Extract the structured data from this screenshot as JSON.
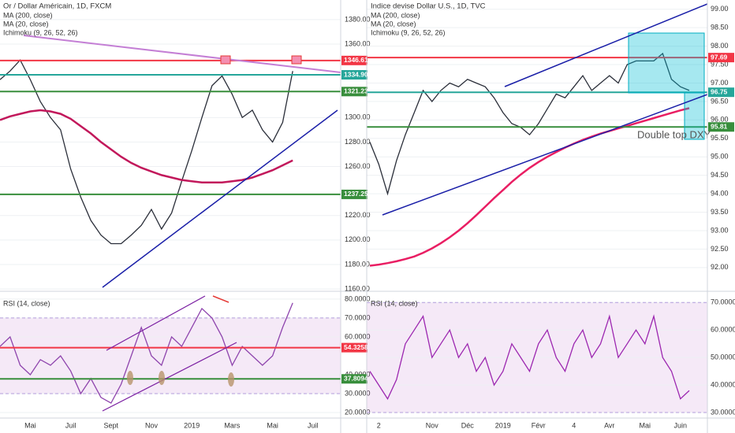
{
  "chart_data": [
    {
      "type": "line",
      "title": "Or / Dollar Américain, 1D, FXCM",
      "legend": [
        "MA (200, close)",
        "MA (20, close)",
        "Ichimoku (9, 26, 52, 26)"
      ],
      "categories": [
        null,
        null,
        null,
        "Mai",
        null,
        null,
        null,
        "Juil",
        null,
        null,
        null,
        "Sept",
        null,
        null,
        null,
        "Nov",
        null,
        null,
        null,
        "2019",
        null,
        null,
        null,
        "Mars",
        null,
        null,
        null,
        "Mai",
        null,
        null,
        null,
        "Juil"
      ],
      "series": [
        {
          "color": "#2a2e39",
          "values": [
            1331,
            1338,
            1347,
            1331,
            1313,
            1300,
            1290,
            1258,
            1235,
            1216,
            1204,
            1197,
            1197,
            1204,
            1212,
            1225,
            1209,
            1222,
            1248,
            1273,
            1300,
            1326,
            1334,
            1319,
            1300,
            1306,
            1290,
            1280,
            1296,
            1338,
            null,
            null
          ]
        },
        {
          "color": "#c2185b",
          "values": [
            1298,
            1301,
            1303,
            1305,
            1306,
            1305,
            1303,
            1299,
            1293,
            1287,
            1280,
            1274,
            1268,
            1263,
            1259,
            1256,
            1253,
            1251,
            1249,
            1248,
            1247,
            1247,
            1247,
            1248,
            1249,
            1251,
            1254,
            1257,
            1261,
            1265,
            null,
            null
          ]
        }
      ],
      "ylim": [
        1159.4,
        1396
      ],
      "yticks": [
        {
          "value": 1160,
          "label": "1160.00"
        },
        {
          "value": 1180,
          "label": "1180.00"
        },
        {
          "value": 1200,
          "label": "1200.00"
        },
        {
          "value": 1220,
          "label": "1220.00"
        },
        {
          "value": 1260,
          "label": "1260.00"
        },
        {
          "value": 1280,
          "label": "1280.00"
        },
        {
          "value": 1300,
          "label": "1300.00"
        },
        {
          "value": 1360,
          "label": "1360.00"
        },
        {
          "value": 1380,
          "label": "1380.00"
        }
      ],
      "levels": [
        {
          "value": 1346.61,
          "color": "#f23645"
        },
        {
          "value": 1334.9,
          "label": "1334.90",
          "color": "#26a69a"
        },
        {
          "value": 1321.23,
          "color": "#388e3c"
        },
        {
          "value": 1237.25,
          "color": "#388e3c"
        }
      ]
    },
    {
      "type": "line",
      "title": "RSI (14, close)",
      "series": [
        {
          "color": "#8e44ad",
          "values": [
            55,
            60,
            45,
            40,
            48,
            45,
            50,
            42,
            30,
            38,
            28,
            25,
            35,
            50,
            65,
            50,
            45,
            60,
            55,
            65,
            75,
            70,
            60,
            45,
            55,
            50,
            45,
            50,
            65,
            78,
            null,
            null
          ]
        }
      ],
      "band": [
        30,
        70
      ],
      "ylim": [
        17.5,
        83.3
      ],
      "yticks": [
        {
          "value": 20,
          "label": "20.0000"
        },
        {
          "value": 30,
          "label": "30.0000"
        },
        {
          "value": 40,
          "label": "40.0000"
        },
        {
          "value": 60,
          "label": "60.0000"
        },
        {
          "value": 70,
          "label": "70.0000"
        },
        {
          "value": 80,
          "label": "80.0000"
        }
      ],
      "levels": [
        {
          "value": 54.3258,
          "color": "#f23645"
        },
        {
          "value": 37.8094,
          "color": "#388e3c"
        }
      ]
    },
    {
      "type": "line",
      "title": "Indice devise Dollar U.S., 1D, TVC",
      "legend": [
        "MA (200, close)",
        "MA (20, close)",
        "Ichimoku (9, 26, 52, 26)"
      ],
      "annotation": "Double top DXY",
      "categories": [
        null,
        "2",
        null,
        null,
        null,
        null,
        null,
        "Nov",
        null,
        null,
        null,
        "Déc",
        null,
        null,
        null,
        "2019",
        null,
        null,
        null,
        "Févr",
        null,
        null,
        null,
        "4",
        null,
        null,
        null,
        "Avr",
        null,
        null,
        null,
        "Mai",
        null,
        null,
        null,
        "Juin",
        null
      ],
      "series": [
        {
          "color": "#2a2e39",
          "values": [
            95.4,
            94.8,
            94.0,
            94.9,
            95.6,
            96.2,
            96.8,
            96.5,
            96.8,
            97.0,
            96.9,
            97.1,
            97.0,
            96.9,
            96.6,
            96.2,
            95.9,
            95.8,
            95.6,
            95.9,
            96.3,
            96.7,
            96.6,
            96.9,
            97.2,
            96.8,
            97.0,
            97.2,
            97.0,
            97.5,
            97.6,
            97.6,
            97.6,
            97.8,
            97.1,
            96.9,
            96.8
          ]
        },
        {
          "color": "#e91e63",
          "values": [
            92.05,
            92.08,
            92.12,
            92.17,
            92.23,
            92.3,
            92.4,
            92.52,
            92.66,
            92.82,
            93.0,
            93.2,
            93.42,
            93.65,
            93.88,
            94.1,
            94.32,
            94.52,
            94.7,
            94.86,
            95.0,
            95.13,
            95.25,
            95.36,
            95.46,
            95.55,
            95.63,
            95.7,
            95.77,
            95.84,
            95.91,
            95.98,
            96.05,
            96.12,
            96.19,
            96.26,
            96.32
          ]
        }
      ],
      "ylim": [
        91.4,
        99.25
      ],
      "yticks": [
        {
          "value": 92,
          "label": "92.00"
        },
        {
          "value": 92.5,
          "label": "92.50"
        },
        {
          "value": 93,
          "label": "93.00"
        },
        {
          "value": 93.5,
          "label": "93.50"
        },
        {
          "value": 94,
          "label": "94.00"
        },
        {
          "value": 94.5,
          "label": "94.50"
        },
        {
          "value": 95,
          "label": "95.00"
        },
        {
          "value": 95.5,
          "label": "95.50"
        },
        {
          "value": 96,
          "label": "96.00"
        },
        {
          "value": 96.5,
          "label": "96.50"
        },
        {
          "value": 97,
          "label": "97.00"
        },
        {
          "value": 97.5,
          "label": "97.50"
        },
        {
          "value": 98,
          "label": "98.00"
        },
        {
          "value": 98.5,
          "label": "98.50"
        },
        {
          "value": 99,
          "label": "99.00"
        }
      ],
      "levels": [
        {
          "value": 97.69,
          "color": "#f23645"
        },
        {
          "value": 96.75,
          "color": "#26a69a"
        },
        {
          "value": 95.81,
          "color": "#388e3c"
        }
      ]
    },
    {
      "type": "line",
      "title": "RSI (14, close)",
      "series": [
        {
          "color": "#9c27b0",
          "values": [
            45,
            40,
            35,
            42,
            55,
            60,
            65,
            50,
            55,
            60,
            50,
            55,
            45,
            50,
            40,
            45,
            55,
            50,
            45,
            55,
            60,
            50,
            45,
            55,
            60,
            50,
            55,
            65,
            50,
            55,
            60,
            55,
            65,
            50,
            45,
            35,
            38
          ]
        }
      ],
      "band": [
        30,
        70
      ],
      "ylim": [
        28.3,
        73.5
      ],
      "yticks": [
        {
          "value": 30,
          "label": "30.0000"
        },
        {
          "value": 40,
          "label": "40.0000"
        },
        {
          "value": 50,
          "label": "50.0000"
        },
        {
          "value": 60,
          "label": "60.0000"
        },
        {
          "value": 70,
          "label": "70.0000"
        }
      ]
    }
  ]
}
